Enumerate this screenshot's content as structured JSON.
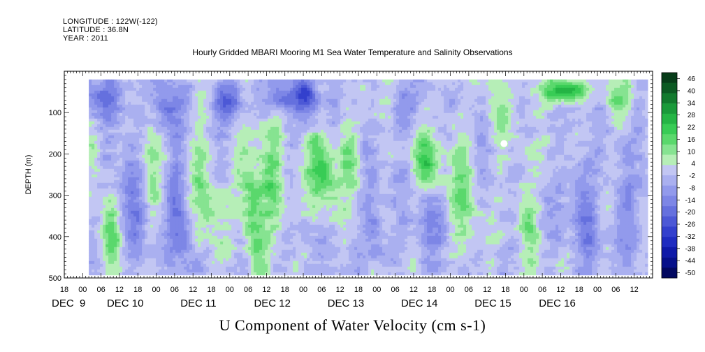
{
  "header": {
    "longitude": "LONGITUDE : 122W(-122)",
    "latitude": "LATITUDE : 36.8N",
    "year": "YEAR : 2011"
  },
  "chart_data": {
    "type": "heatmap",
    "title": "Hourly Gridded MBARI Mooring M1 Sea Water Temperature and Salinity Observations",
    "xlabel": "U Component of Water Velocity (cm s-1)",
    "ylabel": "DEPTH (m)",
    "ylim": [
      500,
      0
    ],
    "data_depth_range": [
      20,
      490
    ],
    "yticks": [
      100,
      200,
      300,
      400,
      500
    ],
    "xlim_hours": [
      -6,
      186
    ],
    "hour_ticks": [
      {
        "h": -6,
        "label": "18"
      },
      {
        "h": 0,
        "label": "00"
      },
      {
        "h": 6,
        "label": "06"
      },
      {
        "h": 12,
        "label": "12"
      },
      {
        "h": 18,
        "label": "18"
      },
      {
        "h": 24,
        "label": "00"
      },
      {
        "h": 30,
        "label": "06"
      },
      {
        "h": 36,
        "label": "12"
      },
      {
        "h": 42,
        "label": "18"
      },
      {
        "h": 48,
        "label": "00"
      },
      {
        "h": 54,
        "label": "06"
      },
      {
        "h": 60,
        "label": "12"
      },
      {
        "h": 66,
        "label": "18"
      },
      {
        "h": 72,
        "label": "00"
      },
      {
        "h": 78,
        "label": "06"
      },
      {
        "h": 84,
        "label": "12"
      },
      {
        "h": 90,
        "label": "18"
      },
      {
        "h": 96,
        "label": "00"
      },
      {
        "h": 102,
        "label": "06"
      },
      {
        "h": 108,
        "label": "12"
      },
      {
        "h": 114,
        "label": "18"
      },
      {
        "h": 120,
        "label": "00"
      },
      {
        "h": 126,
        "label": "06"
      },
      {
        "h": 132,
        "label": "12"
      },
      {
        "h": 138,
        "label": "18"
      },
      {
        "h": 144,
        "label": "00"
      },
      {
        "h": 150,
        "label": "06"
      },
      {
        "h": 156,
        "label": "12"
      },
      {
        "h": 162,
        "label": "18"
      },
      {
        "h": 168,
        "label": "00"
      },
      {
        "h": 174,
        "label": "06"
      },
      {
        "h": 180,
        "label": "12"
      }
    ],
    "date_labels": [
      {
        "h": -6,
        "label": "DEC  9"
      },
      {
        "h": 12,
        "label": "DEC 10"
      },
      {
        "h": 36,
        "label": "DEC 11"
      },
      {
        "h": 60,
        "label": "DEC 12"
      },
      {
        "h": 84,
        "label": "DEC 13"
      },
      {
        "h": 108,
        "label": "DEC 14"
      },
      {
        "h": 132,
        "label": "DEC 15"
      },
      {
        "h": 153,
        "label": "DEC 16"
      }
    ],
    "colorbar": {
      "range": [
        -50,
        50
      ],
      "labels": [
        "46",
        "40",
        "34",
        "28",
        "22",
        "16",
        "10",
        "4",
        "-2",
        "-8",
        "-14",
        "-20",
        "-26",
        "-32",
        "-38",
        "-44",
        "-50"
      ],
      "colors": [
        "#083d1a",
        "#0c5a23",
        "#127a2e",
        "#1a9a3a",
        "#25b545",
        "#38cc55",
        "#5ad86c",
        "#86e391",
        "#b6eeb7",
        "#c2c6f3",
        "#aab0f0",
        "#929aec",
        "#7d86e6",
        "#6570de",
        "#4c58d6",
        "#3340cd",
        "#1f2cc0",
        "#0f1aa8",
        "#06108a",
        "#020860"
      ]
    },
    "features": [
      {
        "h0": 0,
        "h1": 14,
        "d0": 20,
        "d1": 110,
        "u": -16
      },
      {
        "h0": 2,
        "h1": 6,
        "d0": 120,
        "d1": 300,
        "u": 10
      },
      {
        "h0": 7,
        "h1": 12,
        "d0": 300,
        "d1": 480,
        "u": 14
      },
      {
        "h0": 12,
        "h1": 20,
        "d0": 160,
        "d1": 470,
        "u": -10
      },
      {
        "h0": 20,
        "h1": 26,
        "d0": 120,
        "d1": 380,
        "u": 10
      },
      {
        "h0": 24,
        "h1": 32,
        "d0": 30,
        "d1": 160,
        "u": -14
      },
      {
        "h0": 28,
        "h1": 34,
        "d0": 200,
        "d1": 480,
        "u": -14
      },
      {
        "h0": 36,
        "h1": 44,
        "d0": 120,
        "d1": 480,
        "u": 12
      },
      {
        "h0": 44,
        "h1": 52,
        "d0": 20,
        "d1": 120,
        "u": -20
      },
      {
        "h0": 52,
        "h1": 58,
        "d0": 160,
        "d1": 460,
        "u": 20
      },
      {
        "h0": 58,
        "h1": 66,
        "d0": 150,
        "d1": 420,
        "u": 16
      },
      {
        "h0": 60,
        "h1": 70,
        "d0": 20,
        "d1": 100,
        "u": -16
      },
      {
        "h0": 70,
        "h1": 76,
        "d0": 20,
        "d1": 110,
        "u": -22
      },
      {
        "h0": 74,
        "h1": 82,
        "d0": 150,
        "d1": 330,
        "u": 22
      },
      {
        "h0": 84,
        "h1": 90,
        "d0": 130,
        "d1": 300,
        "u": 14
      },
      {
        "h0": 92,
        "h1": 98,
        "d0": 300,
        "d1": 470,
        "u": -12
      },
      {
        "h0": 96,
        "h1": 104,
        "d0": 20,
        "d1": 120,
        "u": 8
      },
      {
        "h0": 100,
        "h1": 106,
        "d0": 40,
        "d1": 140,
        "u": -18
      },
      {
        "h0": 108,
        "h1": 116,
        "d0": 150,
        "d1": 300,
        "u": 18
      },
      {
        "h0": 110,
        "h1": 116,
        "d0": 260,
        "d1": 470,
        "u": -10
      },
      {
        "h0": 120,
        "h1": 128,
        "d0": 120,
        "d1": 470,
        "u": 12
      },
      {
        "h0": 132,
        "h1": 140,
        "d0": 20,
        "d1": 180,
        "u": 10
      },
      {
        "h0": 142,
        "h1": 148,
        "d0": 200,
        "d1": 470,
        "u": 12
      },
      {
        "h0": 150,
        "h1": 164,
        "d0": 20,
        "d1": 70,
        "u": 30
      },
      {
        "h0": 160,
        "h1": 168,
        "d0": 200,
        "d1": 470,
        "u": -12
      },
      {
        "h0": 170,
        "h1": 178,
        "d0": 20,
        "d1": 110,
        "u": 14
      },
      {
        "h0": 174,
        "h1": 182,
        "d0": 250,
        "d1": 470,
        "u": -10
      }
    ]
  }
}
